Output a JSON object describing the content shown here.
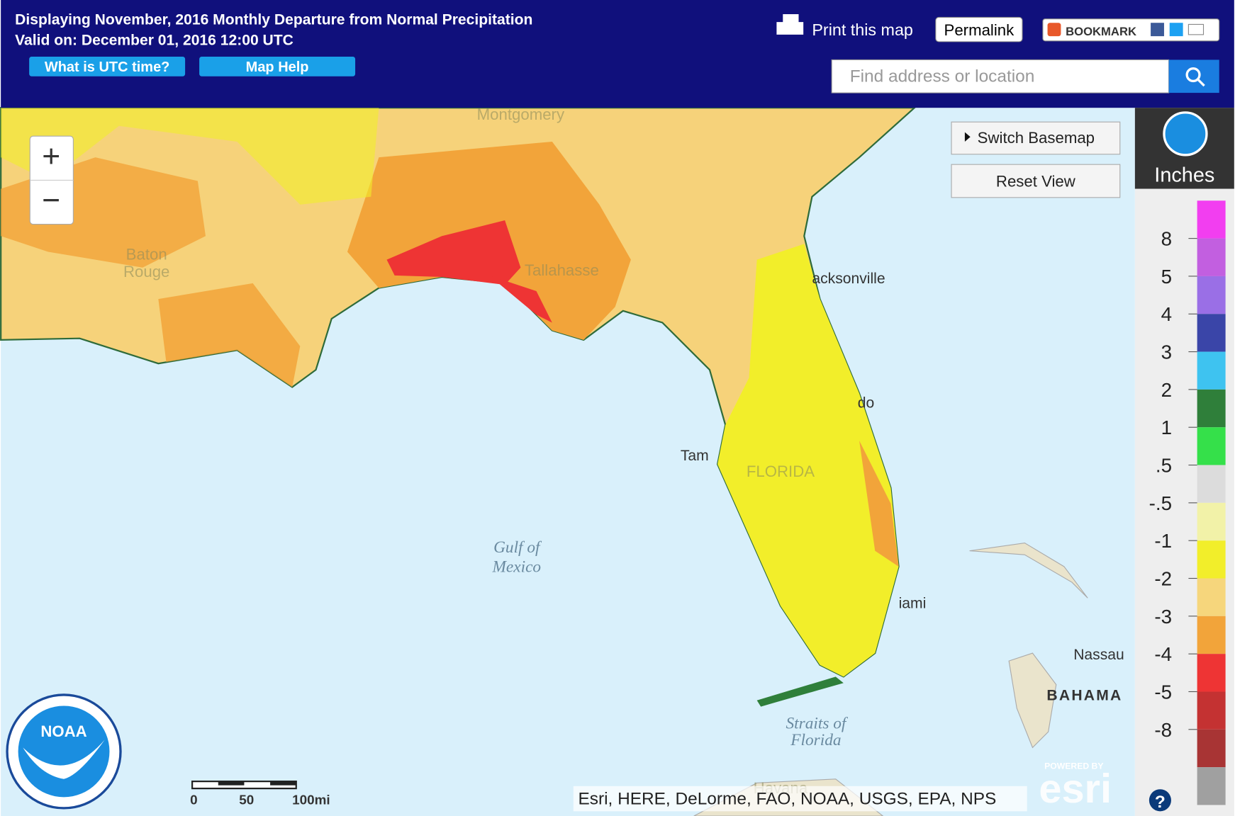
{
  "header": {
    "title": "Displaying November, 2016 Monthly Departure from Normal Precipitation",
    "valid": "Valid on: December 01, 2016 12:00 UTC",
    "buttons": [
      "What is UTC time?",
      "Map Help"
    ],
    "print": "Print this map",
    "permalink": "Permalink",
    "bookmark": "BOOKMARK",
    "search_placeholder": "Find address or location"
  },
  "map": {
    "zoom_in": "+",
    "zoom_out": "−",
    "switch_basemap": "Switch Basemap",
    "reset_view": "Reset View",
    "labels": [
      "acksonville",
      "do",
      "Tam",
      "iami",
      "Nassau",
      "BAHAMA",
      "Gulf of",
      "Mexico",
      "Straits of",
      "Florida",
      "FLORIDA",
      "Tallahasse",
      "Havana",
      "Montgomery",
      "Baton",
      "Rouge"
    ],
    "scale": [
      "0",
      "50",
      "100mi"
    ],
    "attribution": "Esri, HERE, DeLorme, FAO, NOAA, USGS, EPA, NPS",
    "powered_by": "POWERED BY",
    "esri": "esri",
    "noaa": "NOAA"
  },
  "legend": {
    "title": "Inches",
    "labels": [
      "8",
      "5",
      "4",
      "3",
      "2",
      "1",
      ".5",
      "-.5",
      "-1",
      "-2",
      "-3",
      "-4",
      "-5",
      "-8"
    ],
    "colors": [
      "#f23ef0",
      "#c25fe0",
      "#9a6fe6",
      "#3a45a8",
      "#3ec3f0",
      "#2f7f3a",
      "#35e04a",
      "#dcdcdc",
      "#f2f2a8",
      "#f2ee2a",
      "#f6d67c",
      "#f2a43a",
      "#ee3434",
      "#c43232",
      "#a83434",
      "#a0a0a0"
    ]
  }
}
